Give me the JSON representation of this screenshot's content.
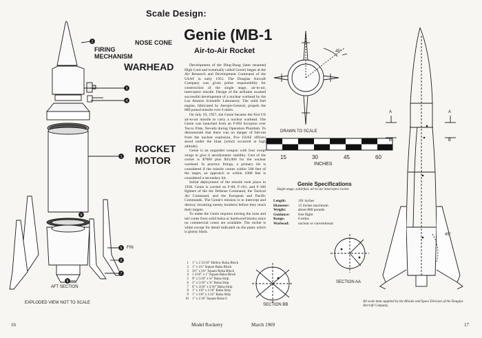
{
  "header": "Scale Design:",
  "title": "Genie (MB-1",
  "subtitle": "Air-to-Air Rocket",
  "labels": {
    "firing": "FIRING",
    "mechanism": "MECHANISM",
    "nose_cone": "NOSE CONE",
    "warhead": "WARHEAD",
    "rocket": "ROCKET",
    "motor": "MOTOR",
    "fin": "FIN",
    "aft_section": "AFT SECTION",
    "exploded_view": "EXPLODED VIEW NOT TO SCALE",
    "drawn_to_scale": "DRAWN TO SCALE",
    "inches": "INCHES",
    "section_aa": "SECTION AA",
    "section_bb": "SECTION BB",
    "angle_top": "45°",
    "angle_side": "45°",
    "mark_a": "A",
    "mark_b": "B"
  },
  "callouts": [
    "2",
    "3",
    "4",
    "1",
    "5",
    "6",
    "7",
    "8",
    "9"
  ],
  "scale_ticks": [
    "15",
    "30",
    "45",
    "60"
  ],
  "article": [
    "Development of the Ding-Dong (later renamed High Card and eventually called Genie) began at the Air Research and Development Command of the USAF in early 1955. The Douglas Aircraft Company was given prime responsibility for construction of the single stage, air-to-air, interceptor missile. Design of the airframe awaited successful development of a nuclear warhead by the Los Alamos Scientific Laboratory. The solid fuel engine, fabricated by Aerojet-General, propels the 800 pound missile over 6 miles.",
    "On July 19, 1957, the Genie became the first US air-to-air missile to carry a nuclear warhead. The Genie was launched from an F-89J Scorpion over Yucca Flats, Nevada during Operation Plumbob. To demonstrate that there was no danger of fall-out from the nuclear explosion, five USAF officers stood under the blast (which occurred at high altitude).",
    "Genie is an unguided weapon with four swept wings to give it aerodynamic stability. Cost of the rocket is $7000 plus $43,000 for the nuclear warhead. In practice firings, a primary hit is considered if the missile comes within 500 feet of the target, an approach to within 1000 feet is considered a secondary hit.",
    "Initial deployment of the missile took place in 1958. Genie is carried on F-89, F-101, and F-106 fighters of the Air Defense Command, the Tactical Air Command, and the European and Pacific Commands. The Genie's mission is to intercept and destroy incoming enemy bombers before they reach their targets.",
    "To make the Genie requires turning the nose and tail cones from solid balsa or hardwood blocks since no commercial cones are available. The rocket is white except for detail indicated on the plans which is glossy black."
  ],
  "specs": {
    "title": "Genie Specifications",
    "subtitle": "Single-stage, solid-fuel, air-to-air interceptor rocket.",
    "rows": [
      {
        "k": "Length:",
        "v": "101 inches"
      },
      {
        "k": "Diameter:",
        "v": "15 inches maximum"
      },
      {
        "k": "Weight:",
        "v": "about 800 pounds"
      },
      {
        "k": "Guidance:",
        "v": "free flight"
      },
      {
        "k": "Range:",
        "v": "6 miles"
      },
      {
        "k": "Warhead:",
        "v": "nuclear or conventional"
      }
    ]
  },
  "parts": [
    {
      "n": "1",
      "t": "1\" x 2 15/16\" Hollow Balsa Block"
    },
    {
      "n": "2",
      "t": "1\" x 1¼\" Square Balsa Block"
    },
    {
      "n": "3",
      "t": "3½\" x 3¼\" Square Balsa Block"
    },
    {
      "n": "4",
      "t": "1 3/16\" x 1\" Square Balsa Block"
    },
    {
      "n": "5",
      "t": "9\" x 5/16\" x ¾\" Balsa Strip"
    },
    {
      "n": "6",
      "t": "3\" x 5/16\" x ¾\" Balsa Strip"
    },
    {
      "n": "7",
      "t": "6\" x 3/16\" x 5/16\" Balsa Strip"
    },
    {
      "n": "8",
      "t": "1\" x 1/8\" x 1/16\" Balsa Strip"
    },
    {
      "n": "9",
      "t": "1\" x 1/8\" x 1/32\" Balsa Strip"
    },
    {
      "n": "10",
      "t": "1\" x 1/16\" Square Balsa S"
    }
  ],
  "credit": "All scale data supplied by the Missile and Space Division of the Douglas Aircraft Company.",
  "footer": {
    "page_left": "16",
    "magazine": "Model Rocketry",
    "date": "March 1969",
    "page_right": "17"
  }
}
